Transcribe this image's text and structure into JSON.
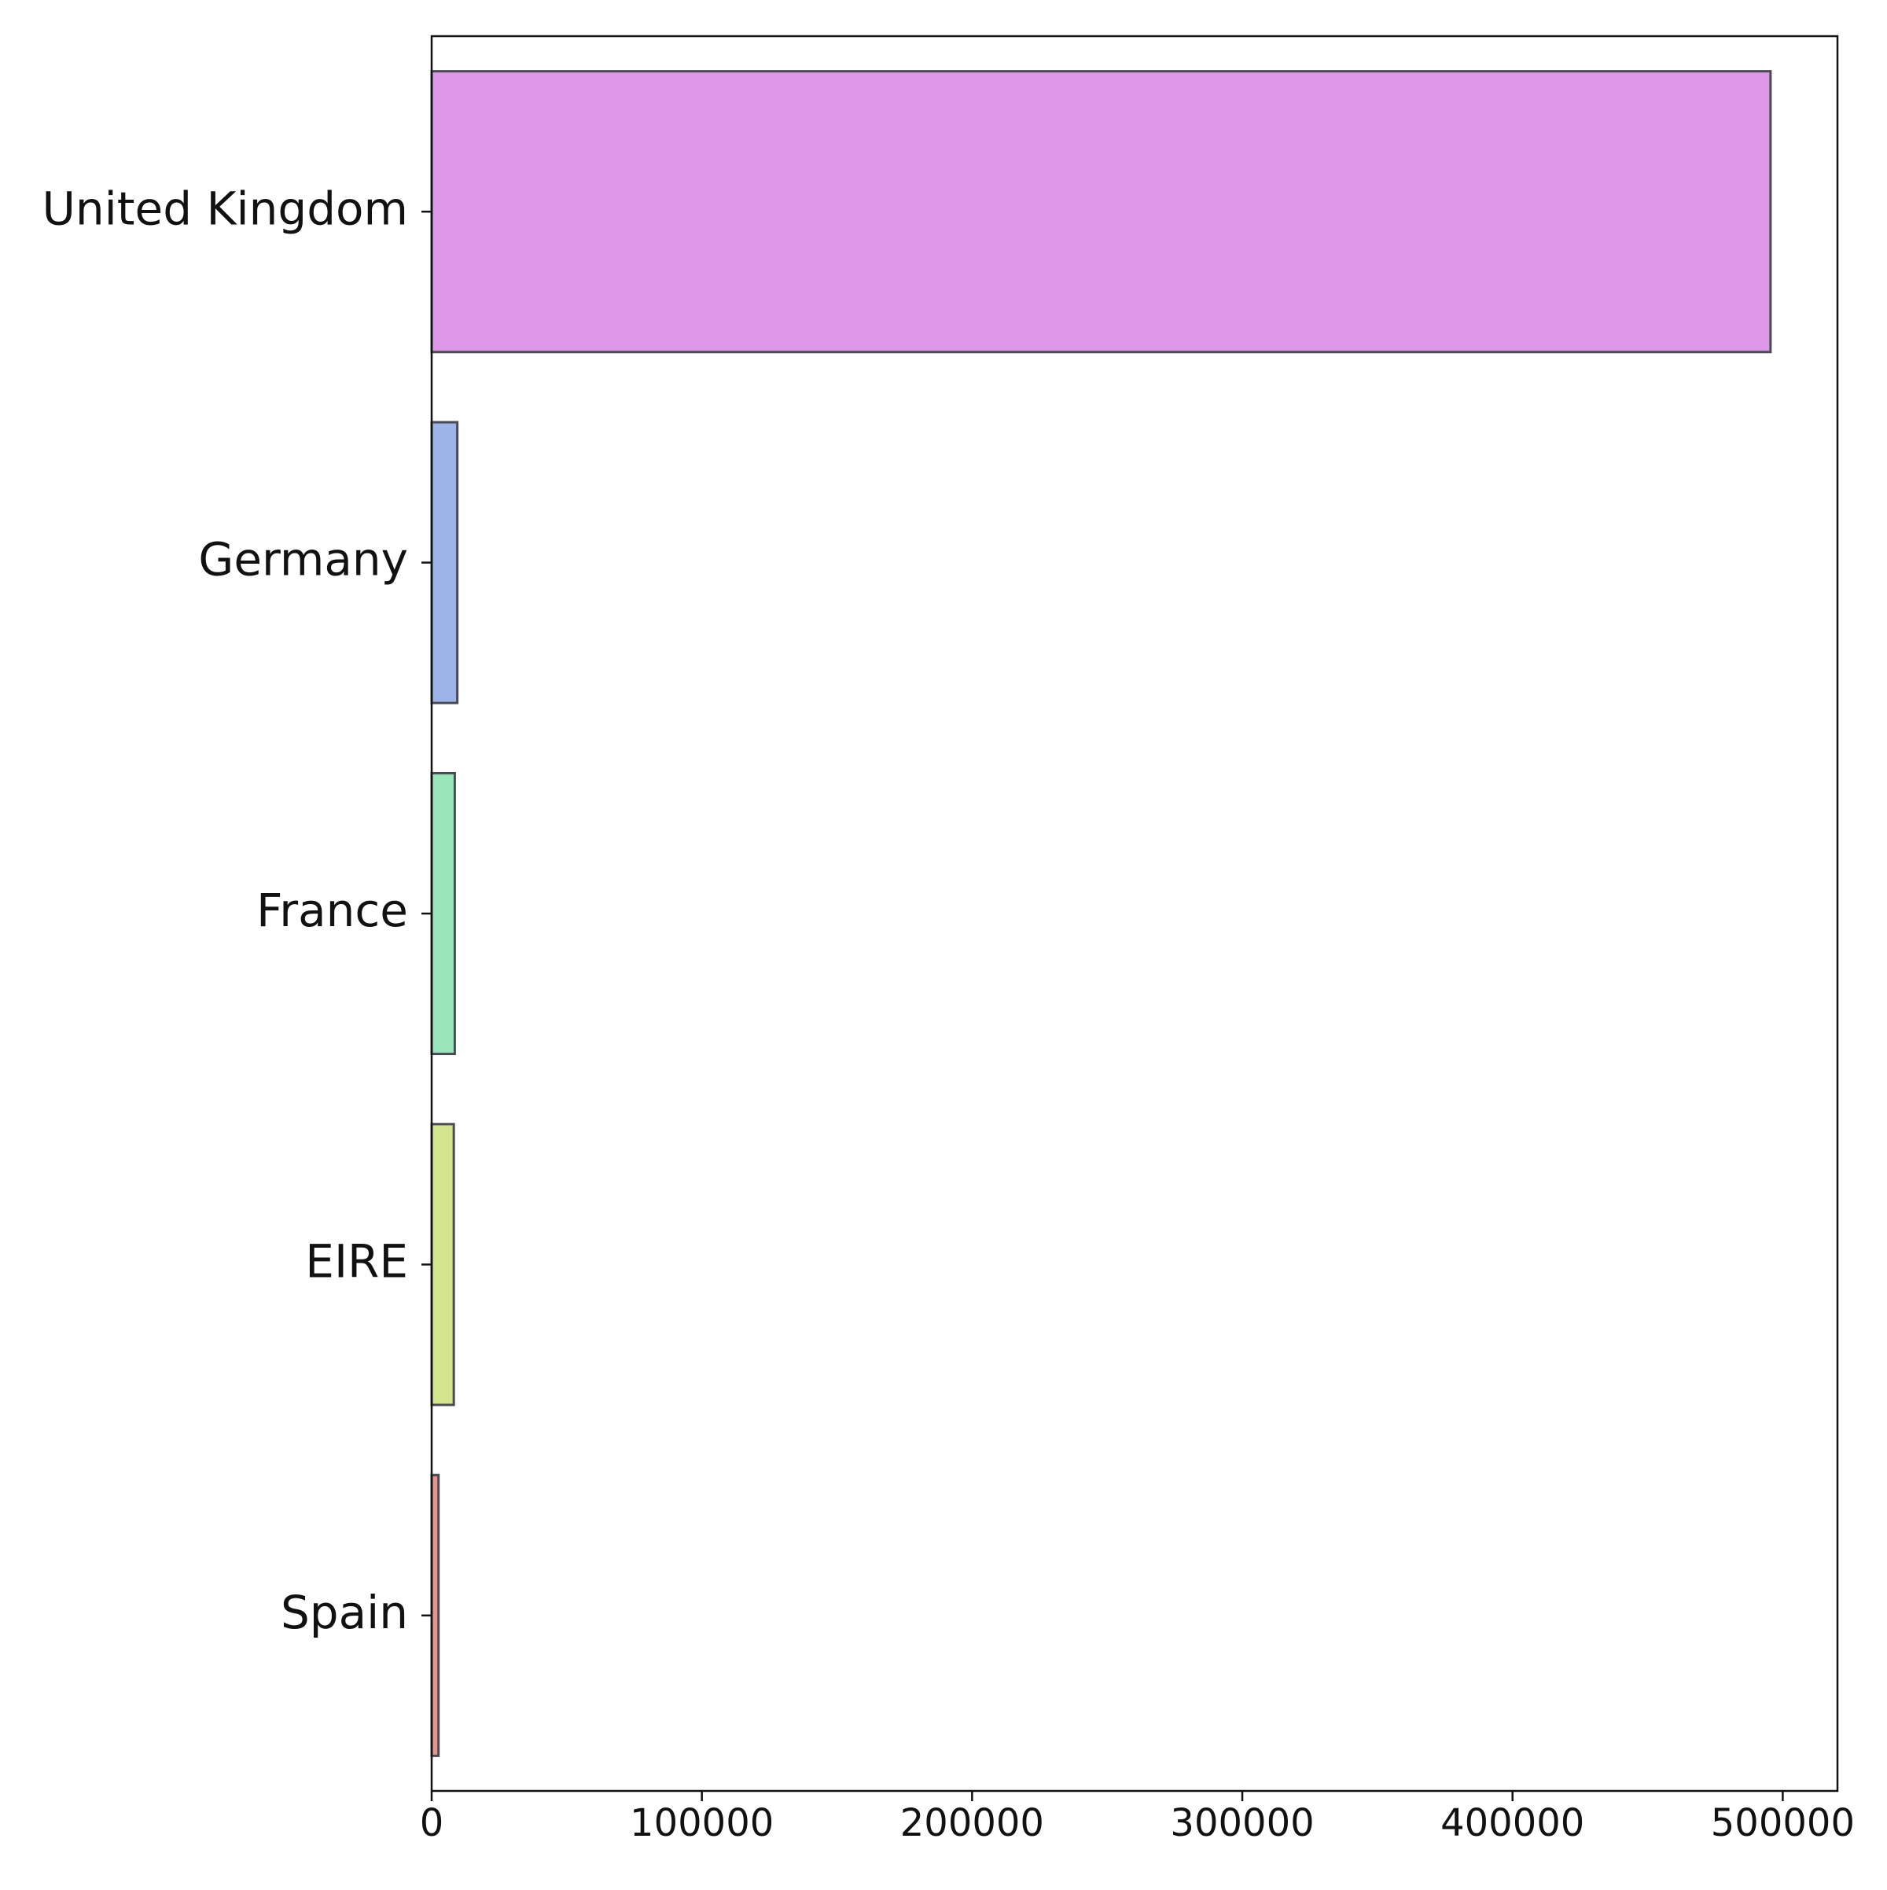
{
  "chart_data": {
    "type": "barh",
    "categories": [
      "United Kingdom",
      "Germany",
      "France",
      "EIRE",
      "Spain"
    ],
    "values": [
      495478,
      9495,
      8557,
      8196,
      2533
    ],
    "colors": [
      "#dd99e8",
      "#9db4e8",
      "#99e6bb",
      "#d3e68f",
      "#e8948a"
    ],
    "xlim": [
      0,
      520252
    ],
    "xticks": [
      0,
      100000,
      200000,
      300000,
      400000,
      500000
    ]
  }
}
